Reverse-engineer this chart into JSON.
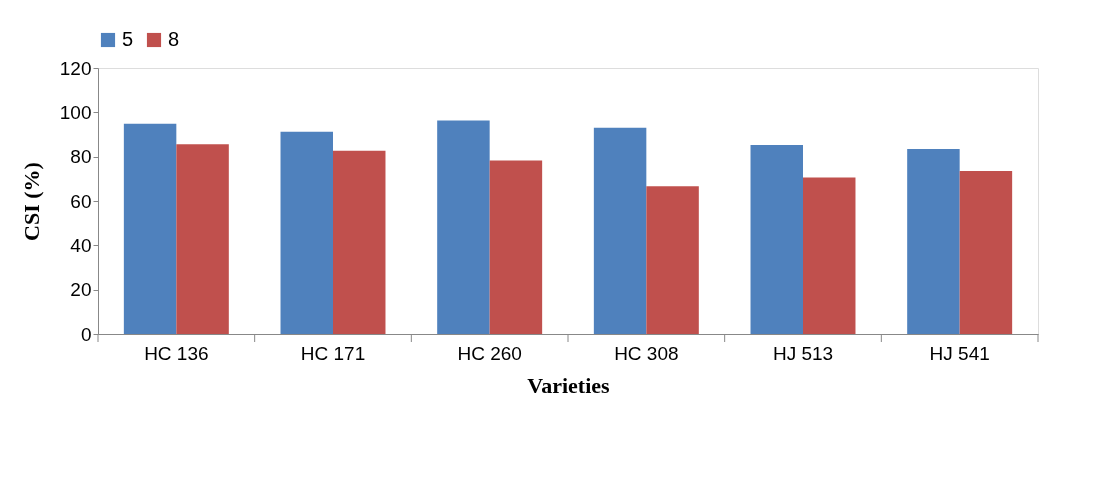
{
  "chart_data": {
    "type": "bar",
    "xlabel": "Varieties",
    "ylabel": "CSI (%)",
    "categories": [
      "HC 136",
      "HC 171",
      "HC 260",
      "HC 308",
      "HJ 513",
      "HJ 541"
    ],
    "series": [
      {
        "name": "5",
        "color": "#4f81bd",
        "values": [
          94.9,
          91.2,
          96.3,
          93.0,
          85.3,
          83.5
        ]
      },
      {
        "name": "8",
        "color": "#c0504d",
        "values": [
          85.6,
          82.7,
          78.3,
          66.6,
          70.6,
          73.5
        ]
      }
    ],
    "ylim": [
      0,
      120
    ],
    "yticks": [
      0,
      20,
      40,
      60,
      80,
      100,
      120
    ],
    "grid": false,
    "legend": "top"
  }
}
